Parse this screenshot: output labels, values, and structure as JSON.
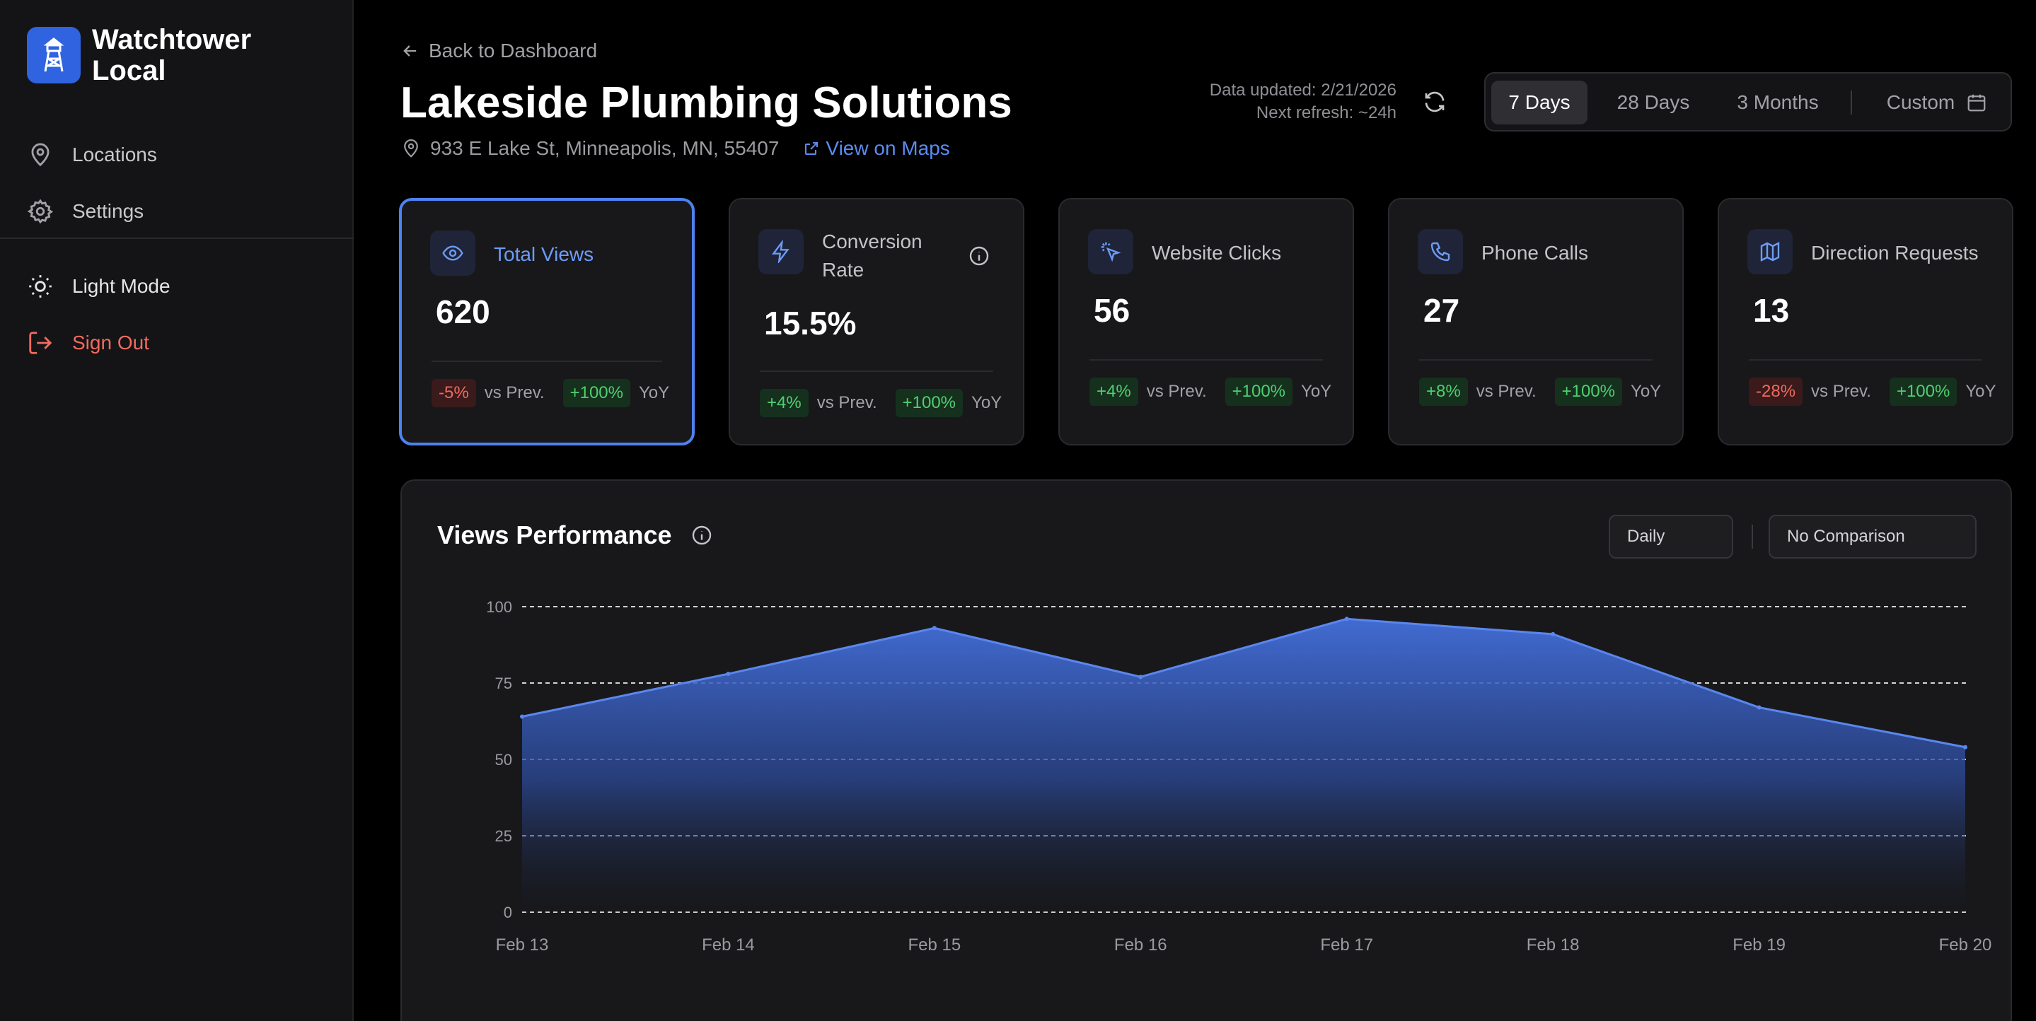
{
  "sidebar": {
    "brand": "Watchtower Local",
    "items": [
      {
        "label": "Locations",
        "icon": "map-pin-icon"
      },
      {
        "label": "Settings",
        "icon": "gear-icon"
      },
      {
        "label": "Light Mode",
        "icon": "sun-icon"
      },
      {
        "label": "Sign Out",
        "icon": "sign-out-icon"
      }
    ]
  },
  "header": {
    "back_label": "Back to Dashboard",
    "title": "Lakeside Plumbing Solutions",
    "address": "933 E Lake St, Minneapolis, MN, 55407",
    "maps_label": "View on Maps",
    "updated": "Data updated: 2/21/2026",
    "next_refresh": "Next refresh: ~24h",
    "ranges": [
      "7 Days",
      "28 Days",
      "3 Months",
      "Custom"
    ],
    "active_range": "7 Days"
  },
  "cards": [
    {
      "label": "Total Views",
      "value": "620",
      "prev": "-5%",
      "prev_txt": "vs Prev.",
      "yoy": "+100%",
      "yoy_txt": "YoY",
      "icon": "eye-icon"
    },
    {
      "label": "Conversion Rate",
      "value": "15.5%",
      "prev": "+4%",
      "prev_txt": "vs Prev.",
      "yoy": "+100%",
      "yoy_txt": "YoY",
      "icon": "bolt-icon"
    },
    {
      "label": "Website Clicks",
      "value": "56",
      "prev": "+4%",
      "prev_txt": "vs Prev.",
      "yoy": "+100%",
      "yoy_txt": "YoY",
      "icon": "cursor-click-icon"
    },
    {
      "label": "Phone Calls",
      "value": "27",
      "prev": "+8%",
      "prev_txt": "vs Prev.",
      "yoy": "+100%",
      "yoy_txt": "YoY",
      "icon": "phone-icon"
    },
    {
      "label": "Direction Requests",
      "value": "13",
      "prev": "-28%",
      "prev_txt": "vs Prev.",
      "yoy": "+100%",
      "yoy_txt": "YoY",
      "icon": "map-icon"
    }
  ],
  "panel": {
    "title": "Views Performance",
    "interval": "Daily",
    "comparison": "No Comparison"
  },
  "colors": {
    "accent": "#4d82f0",
    "negative": "#f06a60",
    "positive": "#4fcf70"
  },
  "chart_data": {
    "type": "area",
    "x": [
      "Feb 13",
      "Feb 14",
      "Feb 15",
      "Feb 16",
      "Feb 17",
      "Feb 18",
      "Feb 19",
      "Feb 20"
    ],
    "values": [
      64,
      78,
      93,
      77,
      96,
      91,
      67,
      54
    ],
    "yticks": [
      0,
      25,
      50,
      75,
      100
    ],
    "ylim": [
      0,
      100
    ],
    "grid": true
  }
}
